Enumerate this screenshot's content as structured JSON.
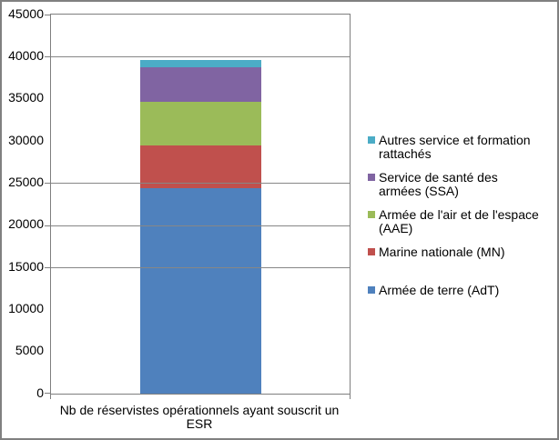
{
  "chart_data": {
    "type": "bar",
    "stacked": true,
    "title": "",
    "categories": [
      "Nb de réservistes opérationnels ayant souscrit un ESR"
    ],
    "category_label_lines": [
      "Nb de réservistes opérationnels ayant souscrit un",
      "ESR"
    ],
    "series": [
      {
        "id": "adt",
        "name": "Armée de terre (AdT)",
        "label_lines": [
          "Armée de terre (AdT)"
        ],
        "color": "#4F81BD",
        "values": [
          24400
        ]
      },
      {
        "id": "mn",
        "name": "Marine nationale (MN)",
        "label_lines": [
          "Marine nationale (MN)"
        ],
        "color": "#C0504D",
        "values": [
          5050
        ]
      },
      {
        "id": "aae",
        "name": "Armée de l'air et de l'espace (AAE)",
        "label_lines": [
          "Armée de l'air et de l'espace",
          "(AAE)"
        ],
        "color": "#9BBB59",
        "values": [
          5200
        ]
      },
      {
        "id": "ssa",
        "name": "Service de santé des armées (SSA)",
        "label_lines": [
          "Service de santé des",
          "armées (SSA)"
        ],
        "color": "#8064A2",
        "values": [
          4050
        ]
      },
      {
        "id": "autres",
        "name": "Autres service et formation rattachés",
        "label_lines": [
          "Autres service et formation",
          "rattachés"
        ],
        "color": "#4BACC6",
        "values": [
          900
        ]
      }
    ],
    "stack_total": 39600,
    "y_axis": {
      "min": 0,
      "max": 45000,
      "step": 5000,
      "tick_labels": [
        "45000",
        "40000",
        "35000",
        "30000",
        "25000",
        "20000",
        "15000",
        "10000",
        "5000",
        "0"
      ]
    },
    "visible_gridlines": [
      45000,
      40000,
      25000,
      20000,
      15000,
      0
    ],
    "xlabel": "Nb de réservistes opérationnels ayant souscrit un ESR",
    "ylabel": "",
    "legend_position": "right",
    "legend_order": "reverse_of_stack",
    "grid": true
  },
  "colors": {
    "frame_border": "#808080",
    "axis_line": "#7F7F7F",
    "gridline": "#878787",
    "text": "#000000",
    "background": "#FFFFFF"
  }
}
